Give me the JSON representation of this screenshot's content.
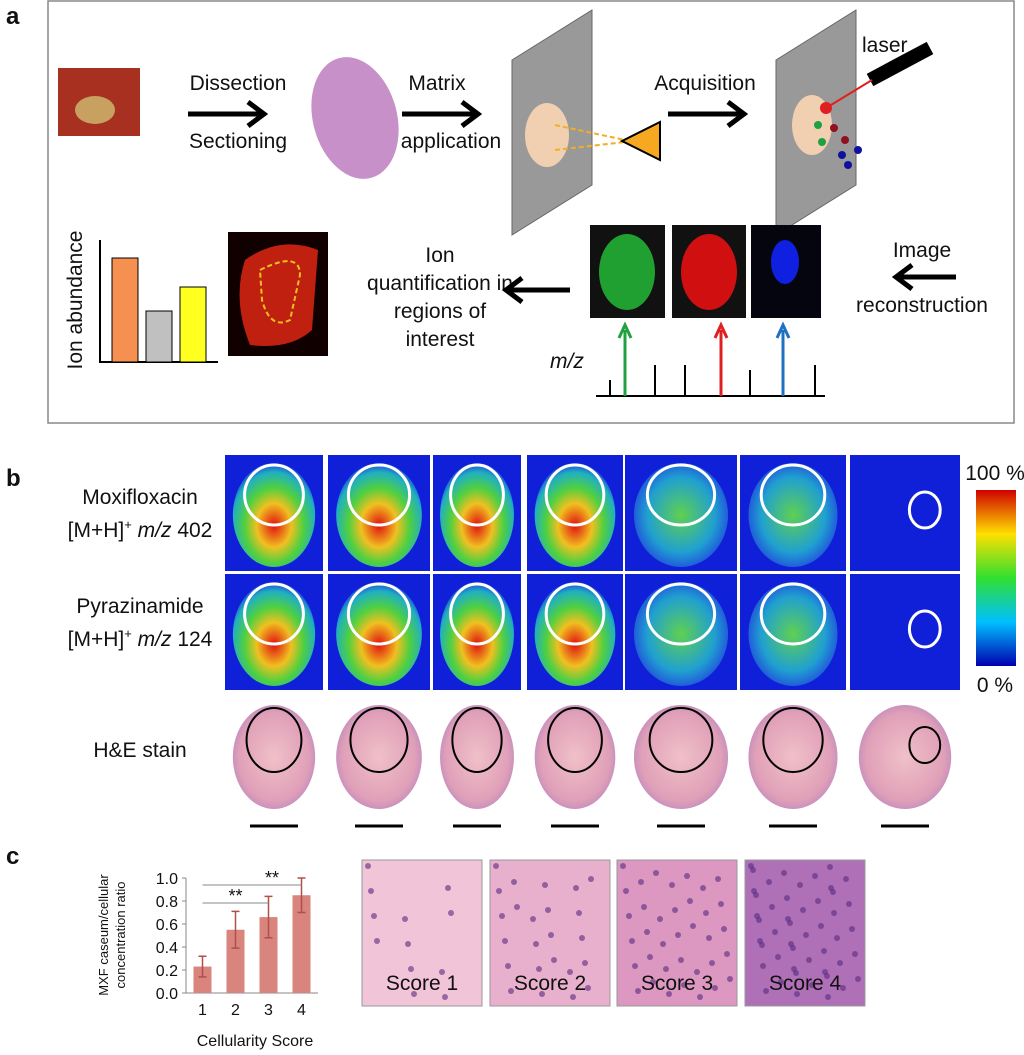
{
  "panel_a": {
    "label": "a",
    "step1": [
      "Dissection",
      "Sectioning"
    ],
    "step2": [
      "Matrix",
      "application"
    ],
    "step3": "Acquisition",
    "laser": "laser",
    "ylabel": "Ion abundance",
    "quant": [
      "Ion",
      "quantification in",
      "regions of",
      "interest"
    ],
    "recon": [
      "Image",
      "reconstruction"
    ],
    "mz": "m/z"
  },
  "panel_b": {
    "label": "b",
    "rows": [
      {
        "drug": "Moxifloxacin",
        "ion": "[M+H]",
        "charge": "+",
        "mz": "m/z",
        "mass": "402"
      },
      {
        "drug": "Pyrazinamide",
        "ion": "[M+H]",
        "charge": "+",
        "mz": "m/z",
        "mass": "124"
      }
    ],
    "stain": "H&E stain",
    "scale_max": "100 %",
    "scale_min": "0 %"
  },
  "panel_c": {
    "label": "c",
    "significance": [
      "**",
      "**"
    ],
    "scores": [
      "Score 1",
      "Score 2",
      "Score 3",
      "Score 4"
    ]
  },
  "chart_data": {
    "type": "bar",
    "ylabel": [
      "MXF caseum/cellular",
      "concentration ratio"
    ],
    "xlabel": "Cellularity Score",
    "categories": [
      "1",
      "2",
      "3",
      "4"
    ],
    "values": [
      0.23,
      0.55,
      0.66,
      0.85
    ],
    "errors": [
      0.09,
      0.16,
      0.18,
      0.15
    ],
    "color": "#d9847d",
    "ylim": [
      0,
      1
    ],
    "yticks": [
      {
        "value": 0,
        "label": "0.0"
      },
      0.2,
      0.4,
      0.6,
      0.8,
      {
        "value": 1,
        "label": "1.0"
      }
    ]
  }
}
